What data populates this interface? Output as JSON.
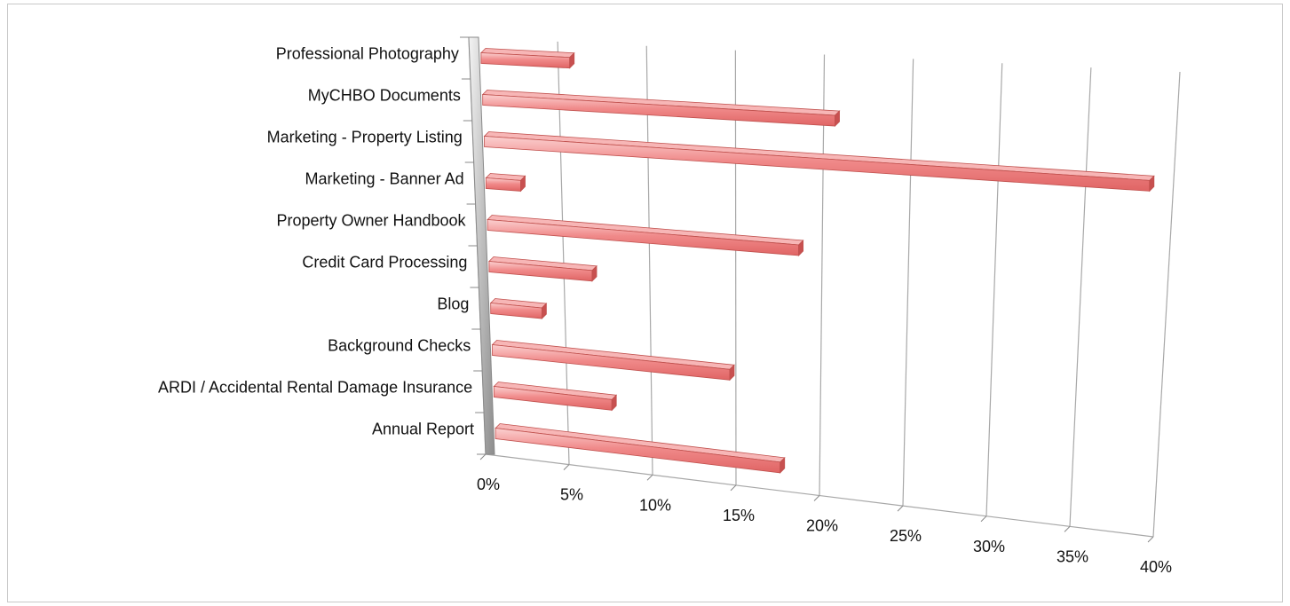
{
  "chart_data": {
    "type": "bar",
    "orientation": "horizontal",
    "three_d": true,
    "title": "",
    "xlabel": "",
    "ylabel": "",
    "categories": [
      "Professional Photography",
      "MyCHBO Documents",
      "Marketing - Property Listing",
      "Marketing - Banner Ad",
      "Property Owner Handbook",
      "Credit Card Processing",
      "Blog",
      "Background Checks",
      "ARDI / Accidental Rental Damage Insurance",
      "Annual Report"
    ],
    "values": [
      5,
      20,
      38,
      2,
      18,
      6,
      3,
      14,
      7,
      17
    ],
    "xlim": [
      0,
      40
    ],
    "x_ticks": [
      0,
      5,
      10,
      15,
      20,
      25,
      30,
      35,
      40
    ],
    "x_tick_labels": [
      "0%",
      "5%",
      "10%",
      "15%",
      "20%",
      "25%",
      "30%",
      "35%",
      "40%"
    ],
    "grid": true,
    "legend": "none",
    "bar_color": "#f08080",
    "bar_edge_color": "#c0504d"
  }
}
